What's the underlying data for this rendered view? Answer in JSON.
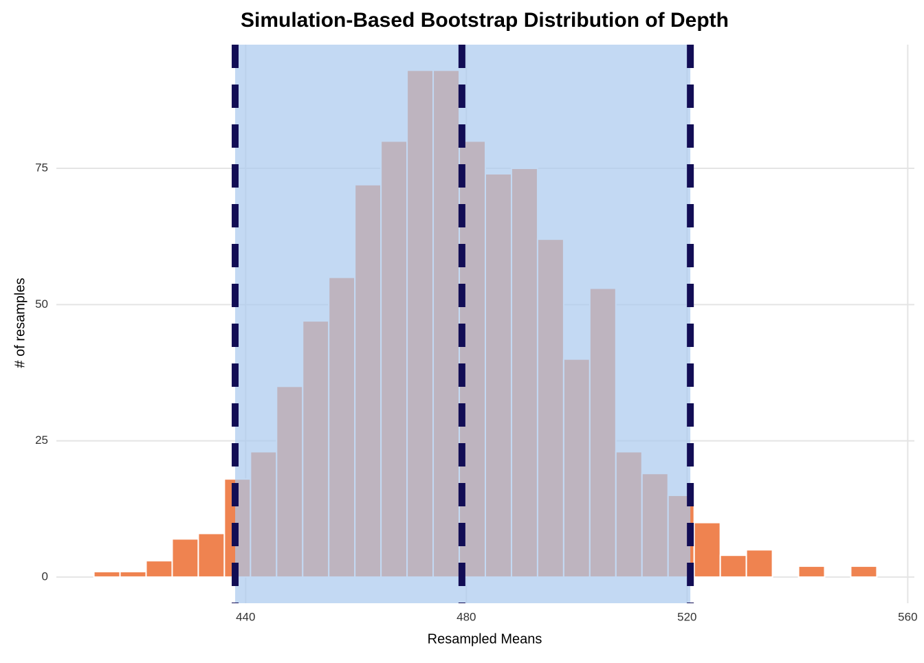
{
  "chart_data": {
    "type": "histogram",
    "title": "Simulation-Based Bootstrap Distribution of Depth",
    "xlabel": "Resampled Means",
    "ylabel": "# of resamples",
    "bins": [
      412.5,
      417.23,
      421.96,
      426.69,
      431.42,
      436.15,
      440.88,
      445.61,
      450.34,
      455.07,
      459.8,
      464.53,
      469.26,
      473.99,
      478.72,
      483.45,
      488.18,
      492.91,
      497.64,
      502.37,
      507.1,
      511.83,
      516.56,
      521.29,
      526.02,
      530.75,
      535.48,
      540.21,
      544.94,
      549.67,
      554.4
    ],
    "values": [
      1,
      1,
      3,
      7,
      8,
      18,
      23,
      35,
      47,
      55,
      72,
      80,
      93,
      93,
      80,
      74,
      75,
      62,
      40,
      53,
      23,
      19,
      15,
      10,
      4,
      5,
      0,
      2,
      0,
      2
    ],
    "color": "#ef8350",
    "ci": [
      438.1,
      520.6
    ],
    "ci_color": "#a9c9ee",
    "mean": 479.2,
    "line_color": "#120d55",
    "xlim": [
      405.7,
      561.2
    ],
    "ylim": [
      -4.8,
      97.7
    ],
    "xticks": [
      440,
      480,
      520,
      560
    ],
    "yticks": [
      0,
      25,
      50,
      75
    ],
    "grid": true
  }
}
